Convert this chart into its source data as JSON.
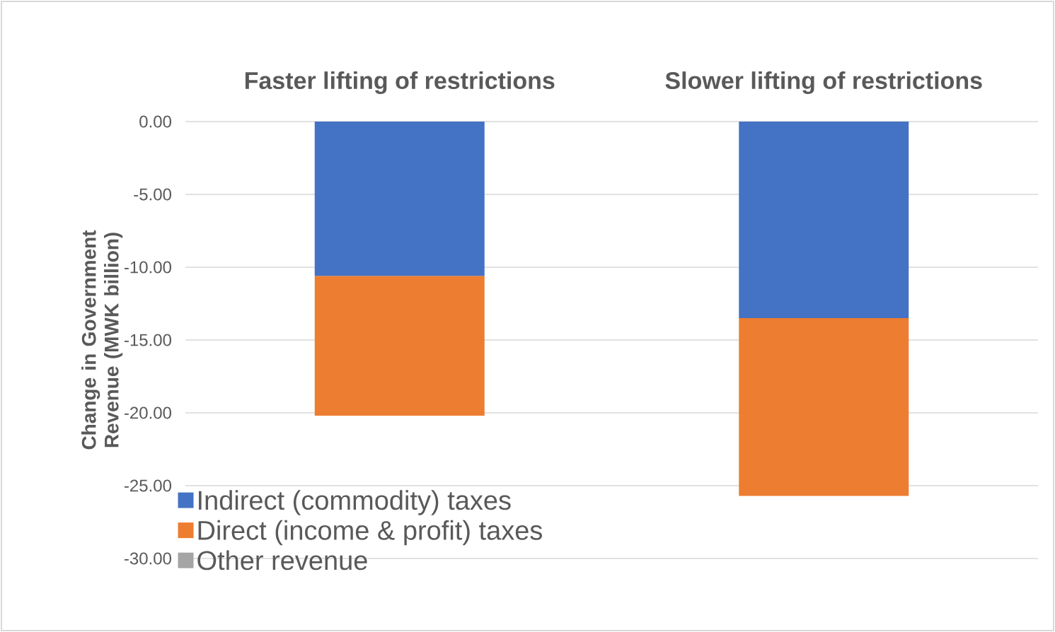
{
  "chart_data": {
    "type": "bar",
    "stacked": true,
    "categories": [
      "Faster lifting of restrictions",
      "Slower lifting of restrictions"
    ],
    "ylabel": "Change in Government Revenue (MWK billion)",
    "ylim": [
      -30,
      0
    ],
    "yticks": [
      {
        "value": 0,
        "label": "0.00"
      },
      {
        "value": -5,
        "label": "-5.00"
      },
      {
        "value": -10,
        "label": "-10.00"
      },
      {
        "value": -15,
        "label": "-15.00"
      },
      {
        "value": -20,
        "label": "-20.00"
      },
      {
        "value": -25,
        "label": "-25.00"
      },
      {
        "value": -30,
        "label": "-30.00"
      }
    ],
    "grid": "y",
    "legend": "bottom left",
    "series": [
      {
        "name": "Indirect (commodity) taxes",
        "color": "#4472c4",
        "values": [
          -10.6,
          -13.5
        ]
      },
      {
        "name": "Direct (income & profit) taxes",
        "color": "#ed7d31",
        "values": [
          -9.6,
          -12.2
        ]
      },
      {
        "name": "Other revenue",
        "color": "#a5a5a5",
        "values": [
          0,
          0
        ]
      }
    ]
  }
}
